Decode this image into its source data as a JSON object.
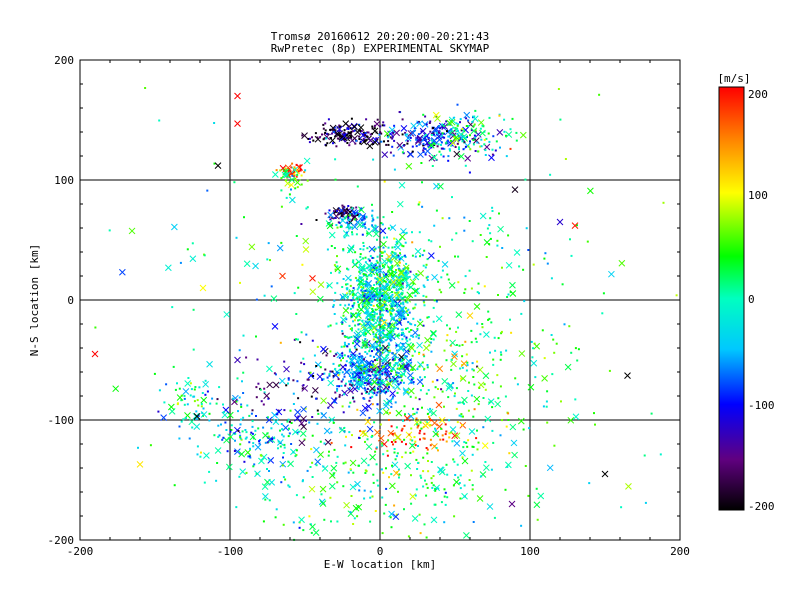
{
  "chart_data": {
    "type": "scatter",
    "title": "Tromsø 20160612 20:20:00-20:21:43",
    "subtitle": "RwPretec (8p) EXPERIMENTAL SKYMAP",
    "xlabel": "E-W location [km]",
    "ylabel": "N-S location [km]",
    "xlim": [
      -200,
      200
    ],
    "ylim": [
      -200,
      200
    ],
    "xticks": [
      "-200",
      "-100",
      "0",
      "100",
      "200"
    ],
    "yticks": [
      "-200",
      "-100",
      "0",
      "100",
      "200"
    ],
    "grid": true,
    "colorbar": {
      "label": "[m/s]",
      "min": -200,
      "max": 200,
      "ticks": [
        "200",
        "100",
        "0",
        "-100",
        "-200"
      ],
      "colormap": "rainbow (black-purple-blue-cyan-green-yellow-red)"
    },
    "marker_types": [
      "dot",
      "x"
    ],
    "clusters": [
      {
        "x": 0,
        "y": 0,
        "sx": 14,
        "sy": 28,
        "count": 900,
        "velocity": -10
      },
      {
        "x": -5,
        "y": -60,
        "sx": 14,
        "sy": 12,
        "count": 350,
        "velocity": -55
      },
      {
        "x": -20,
        "y": 138,
        "sx": 14,
        "sy": 5,
        "count": 160,
        "velocity": -175
      },
      {
        "x": 35,
        "y": 135,
        "sx": 18,
        "sy": 8,
        "count": 200,
        "velocity": -110
      },
      {
        "x": 60,
        "y": 138,
        "sx": 15,
        "sy": 10,
        "count": 110,
        "velocity": 20
      },
      {
        "x": -25,
        "y": 72,
        "sx": 6,
        "sy": 4,
        "count": 60,
        "velocity": -160
      },
      {
        "x": -15,
        "y": 65,
        "sx": 12,
        "sy": 5,
        "count": 60,
        "velocity": -45
      },
      {
        "x": -58,
        "y": 108,
        "sx": 4,
        "sy": 3,
        "count": 35,
        "velocity": 185
      },
      {
        "x": -60,
        "y": 102,
        "sx": 5,
        "sy": 4,
        "count": 30,
        "velocity": 40
      },
      {
        "x": 25,
        "y": -110,
        "sx": 18,
        "sy": 10,
        "count": 90,
        "velocity": 150
      },
      {
        "x": -80,
        "y": -115,
        "sx": 25,
        "sy": 18,
        "count": 160,
        "velocity": -30
      },
      {
        "x": 10,
        "y": -150,
        "sx": 45,
        "sy": 30,
        "count": 320,
        "velocity": 20
      },
      {
        "x": -40,
        "y": -75,
        "sx": 35,
        "sy": 20,
        "count": 140,
        "velocity": -140
      },
      {
        "x": -125,
        "y": -85,
        "sx": 10,
        "sy": 12,
        "count": 60,
        "velocity": 0
      },
      {
        "x": 50,
        "y": -60,
        "sx": 35,
        "sy": 30,
        "count": 220,
        "velocity": 40
      },
      {
        "x": 5,
        "y": 40,
        "sx": 60,
        "sy": 40,
        "count": 180,
        "velocity": 10
      },
      {
        "x": 0,
        "y": 0,
        "sx": 120,
        "sy": 110,
        "count": 150,
        "velocity": 20
      }
    ],
    "notable_points": [
      {
        "x": -190,
        "y": -45,
        "velocity": 200,
        "marker": "x"
      },
      {
        "x": 165,
        "y": -63,
        "velocity": -200,
        "marker": "x"
      },
      {
        "x": 150,
        "y": -145,
        "velocity": -200,
        "marker": "x"
      },
      {
        "x": -160,
        "y": -137,
        "velocity": 110,
        "marker": "x"
      },
      {
        "x": -108,
        "y": 112,
        "velocity": -200,
        "marker": "x"
      },
      {
        "x": -95,
        "y": 170,
        "velocity": 200,
        "marker": "x"
      },
      {
        "x": -95,
        "y": 147,
        "velocity": 200,
        "marker": "x"
      },
      {
        "x": 130,
        "y": 62,
        "velocity": 190,
        "marker": "x"
      },
      {
        "x": 120,
        "y": 65,
        "velocity": -120,
        "marker": "x"
      },
      {
        "x": 90,
        "y": 92,
        "velocity": -190,
        "marker": "x"
      },
      {
        "x": -118,
        "y": 10,
        "velocity": 100,
        "marker": "x"
      },
      {
        "x": 88,
        "y": -170,
        "velocity": -150,
        "marker": "x"
      },
      {
        "x": -122,
        "y": -97,
        "velocity": -200,
        "marker": "x"
      },
      {
        "x": -65,
        "y": 20,
        "velocity": 180,
        "marker": "x"
      },
      {
        "x": -45,
        "y": 18,
        "velocity": 190,
        "marker": "x"
      },
      {
        "x": -95,
        "y": -50,
        "velocity": -130,
        "marker": "x"
      },
      {
        "x": -70,
        "y": -22,
        "velocity": -100,
        "marker": "x"
      }
    ]
  }
}
